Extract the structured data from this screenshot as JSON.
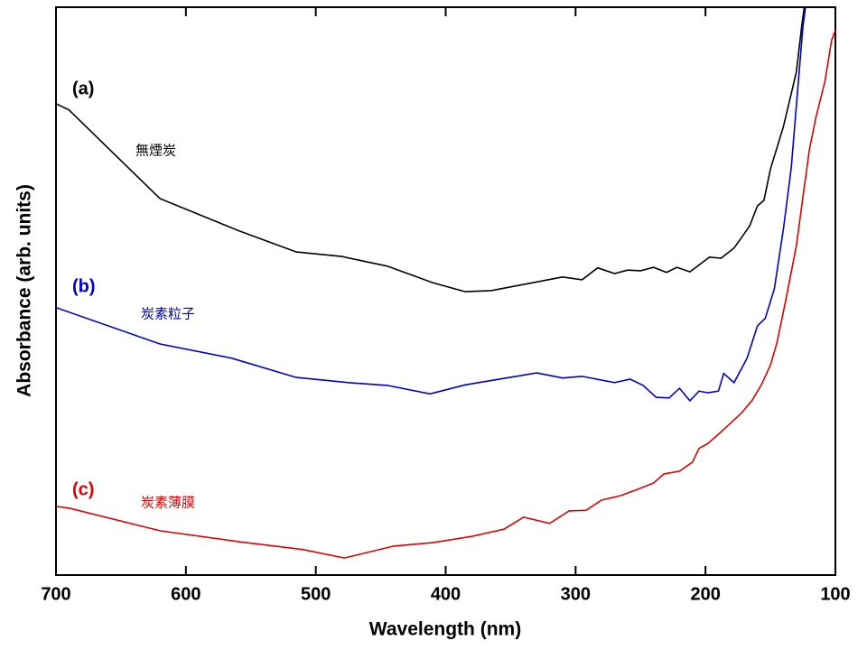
{
  "chart_data": {
    "type": "line",
    "x_label": "Wavelength (nm)",
    "y_label": "Absorbance (arb. units)",
    "xlim": [
      700,
      100
    ],
    "xticks": [
      700,
      600,
      500,
      400,
      300,
      200,
      100
    ],
    "ylim": [
      0,
      100
    ],
    "yticks": [],
    "grid": false,
    "series": [
      {
        "label": "(a)",
        "name": "無煙炭",
        "color": "#000000",
        "x": [
          700,
          690,
          620,
          560,
          515,
          480,
          445,
          410,
          385,
          365,
          310,
          295,
          283,
          270,
          260,
          250,
          240,
          230,
          222,
          212,
          197,
          188,
          178,
          172,
          166,
          160,
          155,
          150,
          140,
          130,
          126,
          124
        ],
        "values": [
          83.0,
          81.9,
          66.3,
          60.7,
          56.9,
          56.1,
          54.4,
          51.5,
          49.9,
          50.1,
          52.5,
          52.0,
          54.1,
          53.1,
          53.7,
          53.6,
          54.2,
          53.3,
          54.2,
          53.4,
          56.0,
          55.8,
          57.6,
          59.5,
          61.5,
          65.0,
          66.0,
          71.5,
          79.0,
          88.6,
          96.5,
          100
        ]
      },
      {
        "label": "(b)",
        "name": "炭素粒子",
        "color": "#0000cc",
        "x": [
          700,
          620,
          565,
          515,
          475,
          445,
          412,
          385,
          330,
          310,
          295,
          270,
          258,
          248,
          238,
          228,
          220,
          212,
          205,
          198,
          190,
          186,
          178,
          168,
          160,
          154,
          147,
          140,
          134,
          125,
          123
        ],
        "values": [
          47.1,
          40.7,
          38.2,
          34.8,
          33.9,
          33.4,
          31.9,
          33.5,
          35.6,
          34.7,
          35.0,
          33.9,
          34.5,
          33.4,
          31.3,
          31.2,
          32.9,
          30.7,
          32.4,
          32.1,
          32.4,
          35.5,
          33.9,
          38.2,
          43.9,
          45.2,
          50.4,
          61.0,
          71.7,
          96.5,
          100
        ]
      },
      {
        "label": "(c)",
        "name": "炭素薄膜",
        "color": "#dd0000",
        "x": [
          700,
          690,
          620,
          560,
          510,
          478,
          440,
          410,
          380,
          355,
          340,
          320,
          305,
          292,
          280,
          265,
          250,
          240,
          232,
          220,
          210,
          205,
          198,
          190,
          180,
          172,
          164,
          157,
          150,
          145,
          138,
          130,
          125,
          120,
          115,
          108,
          103,
          100
        ],
        "values": [
          12.1,
          11.8,
          7.8,
          5.9,
          4.5,
          3.0,
          5.1,
          5.7,
          6.8,
          8.1,
          10.2,
          9.1,
          11.3,
          11.4,
          13.2,
          14.0,
          15.3,
          16.2,
          17.8,
          18.3,
          19.9,
          22.3,
          23.2,
          24.8,
          26.9,
          28.6,
          30.8,
          33.5,
          37.0,
          40.9,
          48.6,
          58.0,
          66.5,
          74.9,
          80.6,
          87.0,
          94.1,
          96.0
        ]
      }
    ]
  }
}
